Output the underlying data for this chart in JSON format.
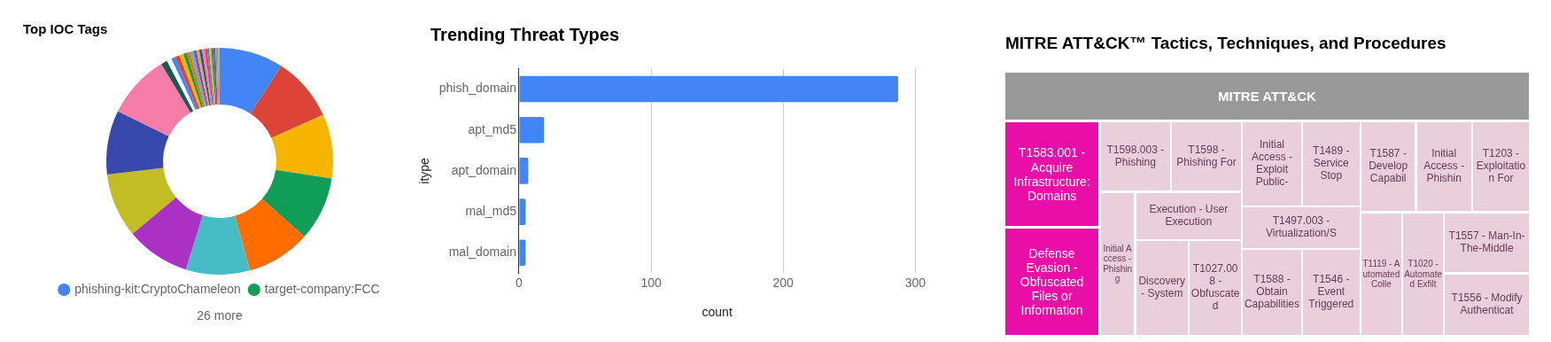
{
  "chart_data": [
    {
      "type": "donut",
      "title": "Top IOC Tags",
      "legend": "bottom",
      "annotations": [
        "26 more"
      ],
      "categories": [
        "phishing-kit:CryptoChameleon",
        null,
        null,
        "target-company:FCC",
        null,
        null,
        null,
        null,
        null,
        null,
        null,
        null,
        null,
        null,
        null,
        null,
        null,
        null,
        null,
        null,
        null,
        null,
        null,
        null,
        null,
        null,
        null,
        null,
        null,
        null
      ],
      "values": [
        9.14,
        9.14,
        9.14,
        9.14,
        9.14,
        9.14,
        9.14,
        9.14,
        9.14,
        9.14,
        0.9,
        0.7,
        0.6,
        0.6,
        0.6,
        0.5,
        0.5,
        0.5,
        0.4,
        0.4,
        0.4,
        0.4,
        0.3,
        0.3,
        0.3,
        0.3,
        0.3,
        0.2,
        0.2,
        0.2
      ],
      "colors": [
        "#4285f4",
        "#db4437",
        "#f4b400",
        "#0f9d58",
        "#ff6d01",
        "#46bdc6",
        "#ab30c4",
        "#c2bd22",
        "#3949ab",
        "#f77ca7",
        "#185a51",
        "#ffffff",
        "#4285f4",
        "#db4437",
        "#f4b400",
        "#0f9d58",
        "#ff6d01",
        "#46bdc6",
        "#ab30c4",
        "#c2bd22",
        "#3949ab",
        "#f77ca7",
        "#db4437",
        "#4285f4",
        "#f4b400",
        "#0f9d58",
        "#ab30c4",
        "#46bdc6",
        "#ff6d01",
        "#c2bd22"
      ]
    },
    {
      "type": "bar",
      "title": "Trending Threat Types",
      "orientation": "horizontal",
      "xlabel": "count",
      "ylabel": "itype",
      "categories": [
        "phish_domain",
        "apt_md5",
        "apt_domain",
        "mal_md5",
        "mal_domain"
      ],
      "values": [
        287,
        19,
        7,
        5,
        5
      ],
      "color": "#4285f4",
      "xlim": [
        0,
        300
      ],
      "xticks": [
        0,
        100,
        200,
        300
      ],
      "grid": "x",
      "legend": false
    },
    {
      "type": "other",
      "title": "MITRE ATT&CK™ Tactics, Techniques, and Procedures",
      "categories": [
        "MITRE ATT&CK",
        "T1583.001 - Acquire Infrastructure: Domains",
        "Defense Evasion - Obfuscated Files or Information",
        "T1598.003 - Phishing",
        "T1598 - Phishing For",
        "Initial Access - Exploit Public-",
        "T1489 - Service Stop",
        "T1587 - Develop Capabil",
        "Initial Access - Phishin",
        "T1203 - Exploitation For",
        "Initial Access - Phishing",
        "Execution - User Execution",
        "Discovery - System",
        "T1027.008 - Obfuscated",
        "T1497.003 - Virtualization/S",
        "T1588 - Obtain Capabilities",
        "T1546 - Event Triggered",
        "T1119 - Automated Colle",
        "T1020 - Automated Exfilt",
        "T1557 - Man-In-The-Middle",
        "T1556 - Modify Authenticat"
      ],
      "colors": [
        "#999999",
        "#e90ea8",
        "#e90ea8",
        "#e8cfda",
        "#e8cfda",
        "#e8cfda",
        "#e8cfda",
        "#e8cfda",
        "#e8cfda",
        "#e8cfda",
        "#e8cfda",
        "#e8cfda",
        "#e8cfda",
        "#e8cfda",
        "#e8cfda",
        "#e8cfda",
        "#e8cfda",
        "#e8cfda",
        "#e8cfda",
        "#e8cfda",
        "#e8cfda"
      ]
    }
  ]
}
